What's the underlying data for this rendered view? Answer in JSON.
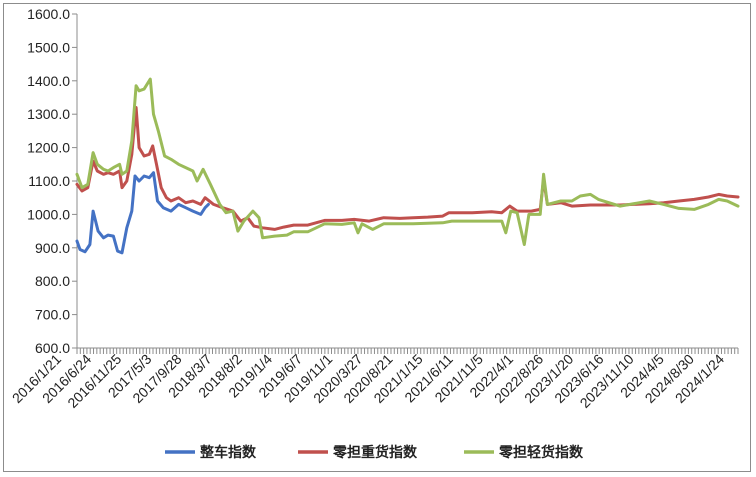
{
  "chart_data": {
    "type": "line",
    "title": "",
    "xlabel": "",
    "ylabel": "",
    "ylim": [
      600,
      1600
    ],
    "yticks": [
      "600.0",
      "700.0",
      "800.0",
      "900.0",
      "1000.0",
      "1100.0",
      "1200.0",
      "1300.0",
      "1400.0",
      "1500.0",
      "1600.0"
    ],
    "xlim": [
      "2016-01-21",
      "2025-01-24"
    ],
    "xticks": [
      "2016/1/21",
      "2016/6/24",
      "2016/11/25",
      "2017/5/3",
      "2017/9/28",
      "2018/3/7",
      "2018/8/2",
      "2019/1/4",
      "2019/6/7",
      "2019/11/1",
      "2020/3/27",
      "2020/8/21",
      "2021/1/15",
      "2021/6/11",
      "2021/11/5",
      "2022/4/1",
      "2022/8/26",
      "2023/1/20",
      "2023/6/16",
      "2023/11/10",
      "2024/4/5",
      "2024/8/30",
      "2024/1/24"
    ],
    "grid": false,
    "legend_position": "bottom",
    "series": [
      {
        "name": "整车指数",
        "color": "#4472c4",
        "points": [
          [
            "2016-01-21",
            920
          ],
          [
            "2016-02-05",
            895
          ],
          [
            "2016-03-01",
            888
          ],
          [
            "2016-03-25",
            910
          ],
          [
            "2016-04-10",
            1010
          ],
          [
            "2016-05-05",
            950
          ],
          [
            "2016-06-01",
            930
          ],
          [
            "2016-06-24",
            938
          ],
          [
            "2016-07-20",
            935
          ],
          [
            "2016-08-10",
            890
          ],
          [
            "2016-09-01",
            885
          ],
          [
            "2016-09-25",
            960
          ],
          [
            "2016-10-20",
            1010
          ],
          [
            "2016-11-05",
            1115
          ],
          [
            "2016-11-25",
            1100
          ],
          [
            "2016-12-20",
            1115
          ],
          [
            "2017-01-15",
            1110
          ],
          [
            "2017-02-05",
            1125
          ],
          [
            "2017-02-25",
            1040
          ],
          [
            "2017-03-25",
            1020
          ],
          [
            "2017-05-03",
            1010
          ],
          [
            "2017-06-10",
            1030
          ],
          [
            "2017-07-15",
            1020
          ],
          [
            "2017-08-20",
            1010
          ],
          [
            "2017-09-28",
            1000
          ],
          [
            "2017-10-20",
            1020
          ],
          [
            "2017-11-05",
            1030
          ]
        ]
      },
      {
        "name": "零担重货指数",
        "color": "#c0504d",
        "points": [
          [
            "2016-01-21",
            1090
          ],
          [
            "2016-02-15",
            1070
          ],
          [
            "2016-03-15",
            1080
          ],
          [
            "2016-04-10",
            1160
          ],
          [
            "2016-05-01",
            1130
          ],
          [
            "2016-06-01",
            1120
          ],
          [
            "2016-06-24",
            1125
          ],
          [
            "2016-07-20",
            1120
          ],
          [
            "2016-08-20",
            1130
          ],
          [
            "2016-09-01",
            1080
          ],
          [
            "2016-09-25",
            1100
          ],
          [
            "2016-10-20",
            1180
          ],
          [
            "2016-11-10",
            1320
          ],
          [
            "2016-11-25",
            1200
          ],
          [
            "2016-12-20",
            1175
          ],
          [
            "2017-01-15",
            1180
          ],
          [
            "2017-02-01",
            1205
          ],
          [
            "2017-02-20",
            1150
          ],
          [
            "2017-03-15",
            1080
          ],
          [
            "2017-04-10",
            1050
          ],
          [
            "2017-05-03",
            1040
          ],
          [
            "2017-06-10",
            1050
          ],
          [
            "2017-07-15",
            1035
          ],
          [
            "2017-08-20",
            1040
          ],
          [
            "2017-09-28",
            1030
          ],
          [
            "2017-10-20",
            1050
          ],
          [
            "2017-12-01",
            1030
          ],
          [
            "2018-01-15",
            1020
          ],
          [
            "2018-03-07",
            1010
          ],
          [
            "2018-04-15",
            980
          ],
          [
            "2018-05-20",
            990
          ],
          [
            "2018-06-20",
            965
          ],
          [
            "2018-08-02",
            960
          ],
          [
            "2018-10-01",
            955
          ],
          [
            "2018-11-15",
            962
          ],
          [
            "2019-01-04",
            968
          ],
          [
            "2019-03-15",
            968
          ],
          [
            "2019-06-07",
            982
          ],
          [
            "2019-09-01",
            982
          ],
          [
            "2019-11-01",
            985
          ],
          [
            "2020-01-15",
            980
          ],
          [
            "2020-03-27",
            990
          ],
          [
            "2020-06-15",
            988
          ],
          [
            "2020-08-21",
            990
          ],
          [
            "2020-11-01",
            992
          ],
          [
            "2021-01-15",
            995
          ],
          [
            "2021-02-15",
            1005
          ],
          [
            "2021-06-11",
            1005
          ],
          [
            "2021-09-15",
            1008
          ],
          [
            "2021-11-05",
            1005
          ],
          [
            "2021-12-15",
            1025
          ],
          [
            "2022-01-20",
            1010
          ],
          [
            "2022-04-01",
            1010
          ],
          [
            "2022-05-15",
            1015
          ],
          [
            "2022-06-01",
            1105
          ],
          [
            "2022-06-20",
            1030
          ],
          [
            "2022-08-26",
            1035
          ],
          [
            "2022-10-20",
            1025
          ],
          [
            "2023-01-20",
            1028
          ],
          [
            "2023-06-16",
            1028
          ],
          [
            "2023-11-10",
            1032
          ],
          [
            "2024-01-20",
            1035
          ],
          [
            "2024-04-05",
            1040
          ],
          [
            "2024-06-20",
            1045
          ],
          [
            "2024-08-30",
            1052
          ],
          [
            "2024-10-20",
            1060
          ],
          [
            "2024-12-01",
            1055
          ],
          [
            "2025-01-24",
            1052
          ]
        ]
      },
      {
        "name": "零担轻货指数",
        "color": "#9bbb59",
        "points": [
          [
            "2016-01-21",
            1120
          ],
          [
            "2016-02-15",
            1080
          ],
          [
            "2016-03-15",
            1090
          ],
          [
            "2016-04-10",
            1185
          ],
          [
            "2016-05-01",
            1150
          ],
          [
            "2016-06-01",
            1135
          ],
          [
            "2016-06-24",
            1130
          ],
          [
            "2016-07-20",
            1140
          ],
          [
            "2016-08-20",
            1150
          ],
          [
            "2016-09-01",
            1120
          ],
          [
            "2016-09-25",
            1130
          ],
          [
            "2016-10-20",
            1220
          ],
          [
            "2016-11-10",
            1385
          ],
          [
            "2016-11-25",
            1370
          ],
          [
            "2016-12-20",
            1375
          ],
          [
            "2017-01-20",
            1405
          ],
          [
            "2017-02-05",
            1300
          ],
          [
            "2017-03-01",
            1250
          ],
          [
            "2017-04-01",
            1175
          ],
          [
            "2017-05-03",
            1165
          ],
          [
            "2017-06-10",
            1150
          ],
          [
            "2017-07-15",
            1140
          ],
          [
            "2017-08-20",
            1130
          ],
          [
            "2017-09-10",
            1100
          ],
          [
            "2017-10-10",
            1135
          ],
          [
            "2017-11-15",
            1090
          ],
          [
            "2018-01-01",
            1030
          ],
          [
            "2018-02-01",
            1005
          ],
          [
            "2018-03-07",
            1010
          ],
          [
            "2018-04-01",
            950
          ],
          [
            "2018-05-01",
            980
          ],
          [
            "2018-06-15",
            1010
          ],
          [
            "2018-07-15",
            990
          ],
          [
            "2018-08-02",
            930
          ],
          [
            "2018-10-01",
            935
          ],
          [
            "2018-12-01",
            938
          ],
          [
            "2019-01-04",
            948
          ],
          [
            "2019-03-15",
            948
          ],
          [
            "2019-06-07",
            972
          ],
          [
            "2019-09-01",
            970
          ],
          [
            "2019-11-01",
            975
          ],
          [
            "2019-11-20",
            945
          ],
          [
            "2019-12-10",
            972
          ],
          [
            "2020-02-01",
            955
          ],
          [
            "2020-03-27",
            972
          ],
          [
            "2020-08-21",
            972
          ],
          [
            "2021-01-15",
            975
          ],
          [
            "2021-03-01",
            980
          ],
          [
            "2021-06-11",
            980
          ],
          [
            "2021-09-01",
            980
          ],
          [
            "2021-11-05",
            980
          ],
          [
            "2021-11-25",
            945
          ],
          [
            "2021-12-20",
            1010
          ],
          [
            "2022-01-20",
            1005
          ],
          [
            "2022-02-25",
            910
          ],
          [
            "2022-03-20",
            1000
          ],
          [
            "2022-05-15",
            1000
          ],
          [
            "2022-06-01",
            1120
          ],
          [
            "2022-06-20",
            1030
          ],
          [
            "2022-08-26",
            1040
          ],
          [
            "2022-10-20",
            1040
          ],
          [
            "2022-12-01",
            1055
          ],
          [
            "2023-01-20",
            1060
          ],
          [
            "2023-03-01",
            1045
          ],
          [
            "2023-06-16",
            1025
          ],
          [
            "2023-11-10",
            1040
          ],
          [
            "2024-01-20",
            1030
          ],
          [
            "2024-04-05",
            1018
          ],
          [
            "2024-06-20",
            1015
          ],
          [
            "2024-08-30",
            1030
          ],
          [
            "2024-10-20",
            1045
          ],
          [
            "2024-12-01",
            1040
          ],
          [
            "2025-01-24",
            1025
          ]
        ]
      }
    ]
  }
}
